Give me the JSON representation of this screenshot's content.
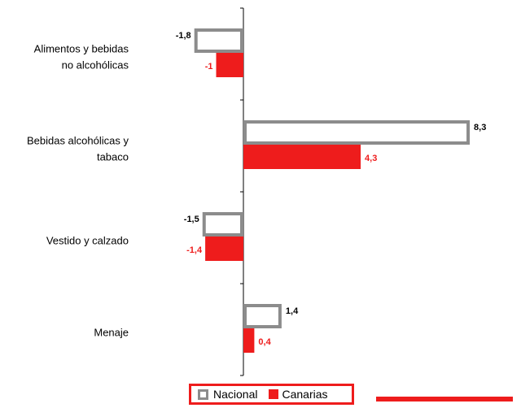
{
  "chart_data": {
    "type": "bar",
    "orientation": "horizontal",
    "categories": [
      [
        "Alimentos y bebidas",
        "no alcohólicas"
      ],
      [
        "Bebidas alcohólicas y",
        "tabaco"
      ],
      [
        "Vestido y calzado"
      ],
      [
        "Menaje"
      ]
    ],
    "series": [
      {
        "name": "Nacional",
        "values": [
          -1.8,
          8.3,
          -1.5,
          1.4
        ],
        "labels": [
          "-1,8",
          "8,3",
          "-1,5",
          "1,4"
        ],
        "color": "#8c8c8c",
        "style": "hollow"
      },
      {
        "name": "Canarias",
        "values": [
          -1,
          4.3,
          -1.4,
          0.4
        ],
        "labels": [
          "-1",
          "4,3",
          "-1,4",
          "0,4"
        ],
        "color": "#ee1c1c",
        "style": "solid"
      }
    ],
    "xlim": [
      -3,
      10
    ],
    "grid": false,
    "legend_position": "bottom"
  },
  "legend": {
    "nacional": "Nacional",
    "canarias": "Canarias"
  }
}
